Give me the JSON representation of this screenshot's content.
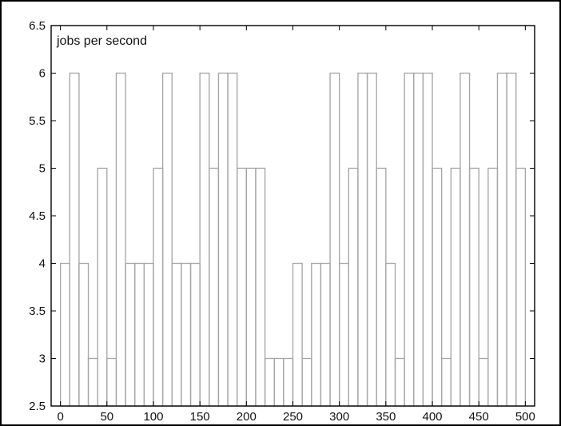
{
  "chart_data": {
    "type": "bar",
    "title": "",
    "xlabel": "",
    "ylabel": "",
    "annotation": "jobs per second",
    "xlim": [
      -10,
      510
    ],
    "ylim": [
      2.5,
      6.5
    ],
    "bar_width": 10,
    "bar_start": 0,
    "x_ticks": [
      0,
      50,
      100,
      150,
      200,
      250,
      300,
      350,
      400,
      450,
      500
    ],
    "x_tick_labels": [
      "0",
      "50",
      "100",
      "150",
      "200",
      "250",
      "300",
      "350",
      "400",
      "450",
      "500"
    ],
    "y_ticks": [
      2.5,
      3,
      3.5,
      4,
      4.5,
      5,
      5.5,
      6,
      6.5
    ],
    "y_tick_labels": [
      "2.5",
      "3",
      "3.5",
      "4",
      "4.5",
      "5",
      "5.5",
      "6",
      "6.5"
    ],
    "values": [
      4,
      6,
      4,
      3,
      5,
      3,
      6,
      4,
      4,
      4,
      5,
      6,
      4,
      4,
      4,
      6,
      5,
      6,
      6,
      5,
      5,
      5,
      3,
      3,
      3,
      4,
      3,
      4,
      4,
      6,
      4,
      5,
      6,
      6,
      5,
      4,
      3,
      6,
      6,
      6,
      5,
      3,
      5,
      6,
      5,
      3,
      5,
      6,
      6,
      5
    ],
    "grid": false,
    "legend": "none",
    "colors": {
      "bar_edge": "#a6a6a6",
      "axes": "#000000",
      "text": "#111111"
    }
  }
}
